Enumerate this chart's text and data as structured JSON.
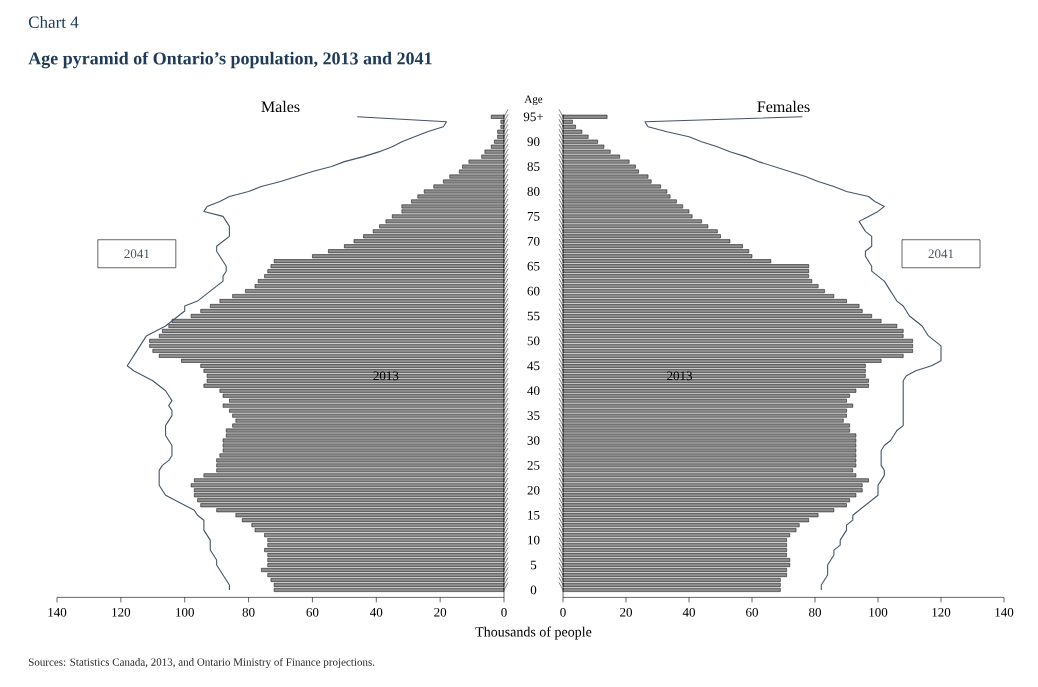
{
  "chart_data": [
    {
      "type": "bar",
      "orientation": "horizontal",
      "title": "Males",
      "ylabel": "Age",
      "xlabel": "Thousands of people",
      "annotations": [
        "Chart 4",
        "Age pyramid of Ontario’s population, 2013 and 2041",
        "Sources:  Statistics Canada, 2013, and Ontario Ministry of Finance projections."
      ],
      "categories": [
        "95+",
        null,
        null,
        null,
        null,
        "90",
        null,
        null,
        null,
        null,
        "85",
        null,
        null,
        null,
        null,
        "80",
        null,
        null,
        null,
        null,
        "75",
        null,
        null,
        null,
        null,
        "70",
        null,
        null,
        null,
        null,
        "65",
        null,
        null,
        null,
        null,
        "60",
        null,
        null,
        null,
        null,
        "55",
        null,
        null,
        null,
        null,
        "50",
        null,
        null,
        null,
        null,
        "45",
        null,
        null,
        null,
        null,
        "40",
        null,
        null,
        null,
        null,
        "35",
        null,
        null,
        null,
        null,
        "30",
        null,
        null,
        null,
        null,
        "25",
        null,
        null,
        null,
        null,
        "20",
        null,
        null,
        null,
        null,
        "15",
        null,
        null,
        null,
        null,
        "10",
        null,
        null,
        null,
        null,
        "5",
        null,
        null,
        null,
        null,
        "0"
      ],
      "series": [
        {
          "name": "2013",
          "color": "#8c8c8c",
          "values": [
            4,
            1,
            1,
            2,
            2,
            3,
            4,
            6,
            7,
            11,
            13,
            14,
            17,
            19,
            22,
            25,
            27,
            29,
            32,
            32,
            35,
            37,
            39,
            41,
            44,
            47,
            50,
            55,
            60,
            72,
            73,
            74,
            75,
            77,
            78,
            81,
            85,
            89,
            92,
            95,
            98,
            104,
            105,
            107,
            108,
            111,
            111,
            110,
            108,
            101,
            95,
            94,
            93,
            93,
            94,
            89,
            88,
            86,
            88,
            86,
            85,
            84,
            85,
            87,
            87,
            88,
            88,
            88,
            89,
            90,
            90,
            90,
            94,
            97,
            98,
            97,
            97,
            96,
            95,
            90,
            84,
            82,
            79,
            78,
            75,
            74,
            74,
            75,
            74,
            74,
            74,
            76,
            74,
            73,
            72,
            72
          ]
        },
        {
          "name": "2041",
          "type": "line",
          "color": "#44546a",
          "values": [
            46,
            18,
            19,
            24,
            28,
            32,
            35,
            39,
            44,
            50,
            54,
            60,
            65,
            70,
            76,
            80,
            86,
            89,
            93,
            94,
            88,
            87,
            86,
            86,
            86,
            88,
            90,
            90,
            89,
            88,
            87,
            87,
            88,
            88,
            90,
            92,
            94,
            96,
            100,
            100,
            102,
            104,
            106,
            109,
            112,
            113,
            114,
            115,
            116,
            117,
            118,
            116,
            113,
            110,
            108,
            106,
            105,
            104,
            105,
            104,
            104,
            105,
            106,
            106,
            106,
            105,
            104,
            104,
            104,
            105,
            107,
            108,
            108,
            108,
            108,
            107,
            106,
            103,
            100,
            97,
            96,
            94,
            94,
            94,
            93,
            92,
            92,
            92,
            91,
            90,
            90,
            89,
            88,
            87,
            86,
            86
          ]
        }
      ],
      "xlim": [
        140,
        0
      ],
      "xticks": [
        0,
        20,
        40,
        60,
        80,
        100,
        120,
        140
      ]
    },
    {
      "type": "bar",
      "orientation": "horizontal",
      "title": "Females",
      "categories": [
        null,
        null,
        null,
        null,
        null,
        null,
        null,
        null,
        null,
        null,
        null,
        null,
        null,
        null,
        null,
        null,
        null,
        null,
        null,
        null,
        null,
        null,
        null,
        null,
        null,
        null,
        null,
        null,
        null,
        null,
        null,
        null,
        null,
        null,
        null,
        null,
        null,
        null,
        null,
        null,
        null,
        null,
        null,
        null,
        null,
        null,
        null,
        null,
        null,
        null,
        null,
        null,
        null,
        null,
        null,
        null,
        null,
        null,
        null,
        null,
        null,
        null,
        null,
        null,
        null,
        null,
        null,
        null,
        null,
        null,
        null,
        null,
        null,
        null,
        null,
        null,
        null,
        null,
        null,
        null,
        null,
        null,
        null,
        null,
        null,
        null,
        null,
        null,
        null,
        null,
        null,
        null,
        null,
        null,
        null,
        null
      ],
      "series": [
        {
          "name": "2013",
          "color": "#8c8c8c",
          "values": [
            14,
            3,
            4,
            6,
            8,
            11,
            13,
            15,
            18,
            21,
            23,
            24,
            27,
            28,
            31,
            33,
            34,
            36,
            38,
            40,
            41,
            44,
            46,
            49,
            50,
            53,
            57,
            59,
            60,
            66,
            78,
            78,
            78,
            79,
            81,
            83,
            86,
            90,
            94,
            95,
            98,
            101,
            106,
            108,
            108,
            111,
            111,
            111,
            108,
            101,
            96,
            96,
            96,
            97,
            97,
            93,
            91,
            90,
            92,
            90,
            90,
            89,
            91,
            91,
            93,
            93,
            93,
            93,
            93,
            93,
            93,
            92,
            93,
            97,
            95,
            95,
            93,
            91,
            90,
            86,
            81,
            78,
            75,
            74,
            72,
            71,
            71,
            71,
            71,
            72,
            72,
            71,
            71,
            69,
            69,
            69
          ]
        },
        {
          "name": "2041",
          "type": "line",
          "color": "#44546a",
          "values": [
            76,
            26,
            27,
            33,
            40,
            44,
            49,
            53,
            58,
            62,
            67,
            72,
            77,
            81,
            86,
            90,
            97,
            99,
            102,
            100,
            97,
            94,
            95,
            96,
            98,
            98,
            98,
            96,
            96,
            97,
            98,
            98,
            100,
            102,
            103,
            104,
            105,
            106,
            108,
            109,
            110,
            112,
            114,
            115,
            116,
            118,
            120,
            120,
            120,
            120,
            117,
            112,
            109,
            108,
            108,
            108,
            108,
            108,
            108,
            108,
            108,
            108,
            108,
            106,
            105,
            104,
            102,
            101,
            101,
            101,
            101,
            102,
            102,
            101,
            100,
            100,
            100,
            98,
            96,
            94,
            92,
            92,
            90,
            90,
            89,
            88,
            88,
            86,
            86,
            85,
            84,
            84,
            84,
            83,
            82,
            82
          ]
        }
      ],
      "xlim": [
        0,
        140
      ],
      "xticks": [
        0,
        20,
        40,
        60,
        80,
        100,
        120,
        140
      ]
    }
  ]
}
